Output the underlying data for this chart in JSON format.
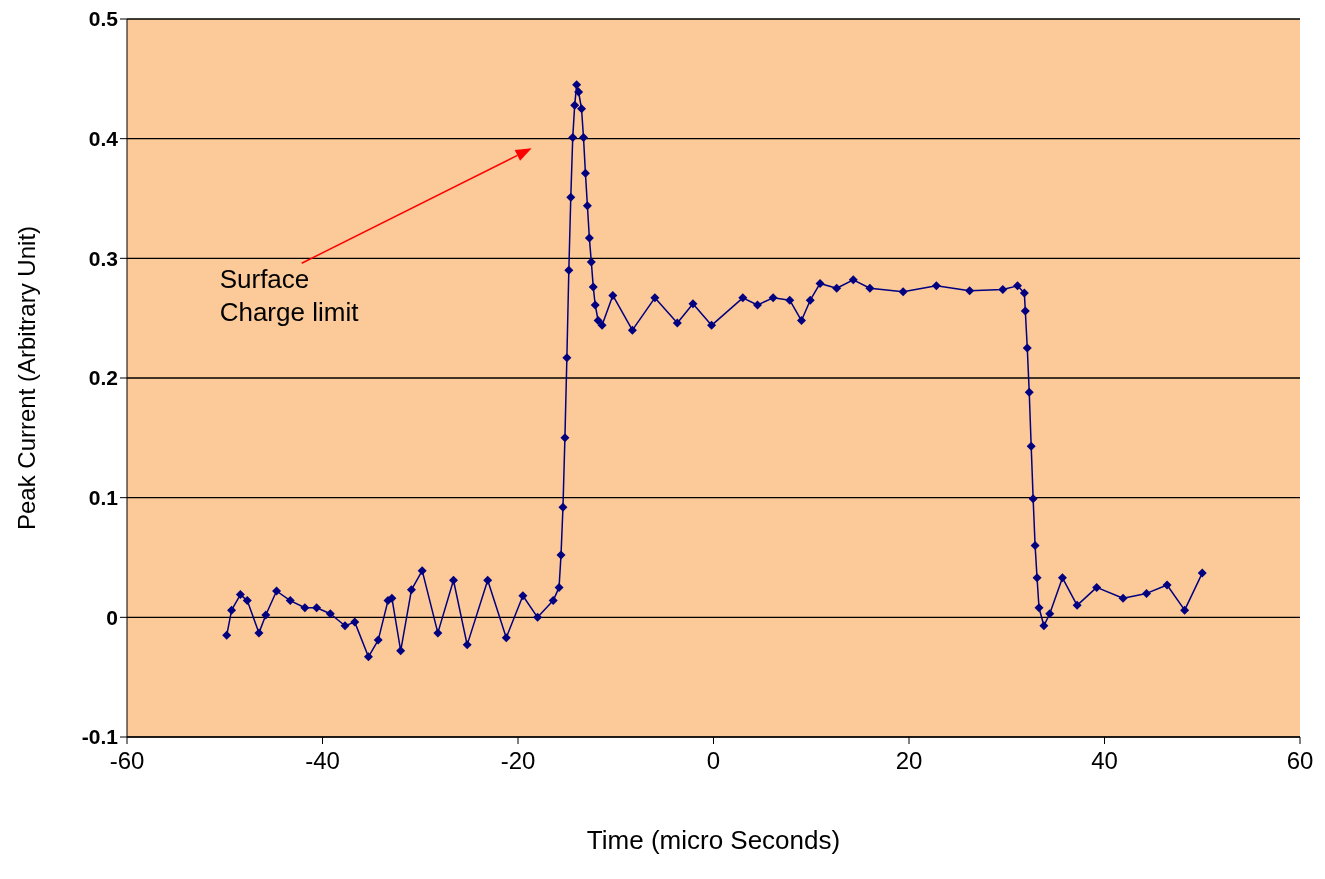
{
  "chart_data": {
    "type": "line",
    "xlabel": "Time (micro Seconds)",
    "ylabel": "Peak Current (Arbitrary Unit)",
    "x": [
      -49.8,
      -49.3,
      -48.4,
      -47.7,
      -46.5,
      -45.8,
      -44.7,
      -43.3,
      -41.8,
      -40.6,
      -39.2,
      -37.7,
      -36.7,
      -35.3,
      -34.3,
      -33.3,
      -32.9,
      -32.0,
      -30.9,
      -29.8,
      -28.2,
      -26.6,
      -25.2,
      -23.1,
      -21.2,
      -19.5,
      -18.0,
      -16.4,
      -15.8,
      -15.6,
      -15.4,
      -15.2,
      -15.0,
      -14.8,
      -14.6,
      -14.4,
      -14.2,
      -14.0,
      -13.8,
      -13.5,
      -13.3,
      -13.1,
      -12.9,
      -12.7,
      -12.5,
      -12.3,
      -12.1,
      -11.8,
      -11.4,
      -10.3,
      -8.3,
      -6.0,
      -3.7,
      -2.1,
      -0.2,
      3.0,
      4.5,
      6.1,
      7.8,
      9.0,
      9.9,
      10.9,
      12.6,
      14.3,
      16.0,
      19.4,
      22.8,
      26.2,
      29.6,
      31.1,
      31.8,
      31.9,
      32.1,
      32.3,
      32.5,
      32.7,
      32.9,
      33.1,
      33.3,
      33.8,
      34.4,
      35.7,
      37.2,
      39.2,
      41.9,
      44.3,
      46.4,
      48.2,
      50.0
    ],
    "series": [
      {
        "color": "#000080",
        "values": [
          -0.015,
          0.006,
          0.019,
          0.014,
          -0.013,
          0.002,
          0.022,
          0.014,
          0.008,
          0.008,
          0.003,
          -0.007,
          -0.004,
          -0.033,
          -0.019,
          0.014,
          0.016,
          -0.028,
          0.023,
          0.039,
          -0.013,
          0.031,
          -0.023,
          0.031,
          -0.017,
          0.018,
          0.0,
          0.014,
          0.025,
          0.052,
          0.092,
          0.15,
          0.217,
          0.29,
          0.351,
          0.401,
          0.428,
          0.445,
          0.439,
          0.425,
          0.401,
          0.371,
          0.344,
          0.317,
          0.297,
          0.276,
          0.261,
          0.248,
          0.244,
          0.269,
          0.24,
          0.267,
          0.246,
          0.262,
          0.244,
          0.267,
          0.261,
          0.267,
          0.265,
          0.248,
          0.265,
          0.279,
          0.275,
          0.282,
          0.275,
          0.272,
          0.277,
          0.273,
          0.274,
          0.277,
          0.271,
          0.256,
          0.225,
          0.188,
          0.143,
          0.099,
          0.06,
          0.033,
          0.008,
          -0.007,
          0.003,
          0.033,
          0.01,
          0.025,
          0.016,
          0.02,
          0.027,
          0.006,
          0.037
        ]
      }
    ],
    "xlim": [
      -60,
      60
    ],
    "xticks": [
      -60,
      -40,
      -20,
      0,
      20,
      40,
      60
    ],
    "ylim": [
      -0.1,
      0.5
    ],
    "yticks": [
      -0.1,
      0,
      0.1,
      0.2,
      0.3,
      0.4,
      0.5
    ],
    "grid": "y",
    "marker": "diamond",
    "line_style": "solid",
    "legend": false,
    "annotations": [
      "Surface\nCharge limit"
    ]
  }
}
